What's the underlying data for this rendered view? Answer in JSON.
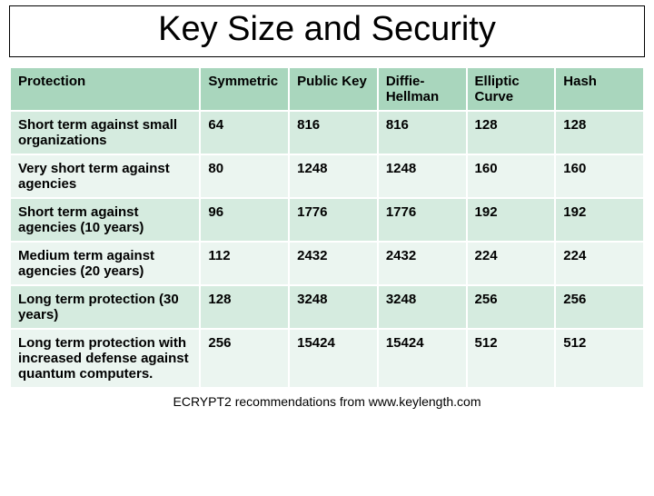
{
  "title": "Key Size and Security",
  "table": {
    "columns": [
      "Protection",
      "Symmetric",
      "Public Key",
      "Diffie-Hellman",
      "Elliptic Curve",
      "Hash"
    ],
    "rows": [
      [
        "Short term against small organizations",
        "64",
        "816",
        "816",
        "128",
        "128"
      ],
      [
        "Very short term against agencies",
        "80",
        "1248",
        "1248",
        "160",
        "160"
      ],
      [
        "Short term against agencies (10 years)",
        "96",
        "1776",
        "1776",
        "192",
        "192"
      ],
      [
        "Medium term against agencies (20 years)",
        "112",
        "2432",
        "2432",
        "224",
        "224"
      ],
      [
        "Long term protection (30 years)",
        "128",
        "3248",
        "3248",
        "256",
        "256"
      ],
      [
        "Long term protection with increased defense against quantum computers.",
        "256",
        "15424",
        "15424",
        "512",
        "512"
      ]
    ],
    "header_bg": "#a9d6bd",
    "row_odd_bg": "#d5ebdf",
    "row_even_bg": "#ebf5f0",
    "border_color": "#ffffff",
    "font_size": 15,
    "font_weight": 700
  },
  "footer": "ECRYPT2 recommendations from www.keylength.com",
  "background_color": "#ffffff"
}
